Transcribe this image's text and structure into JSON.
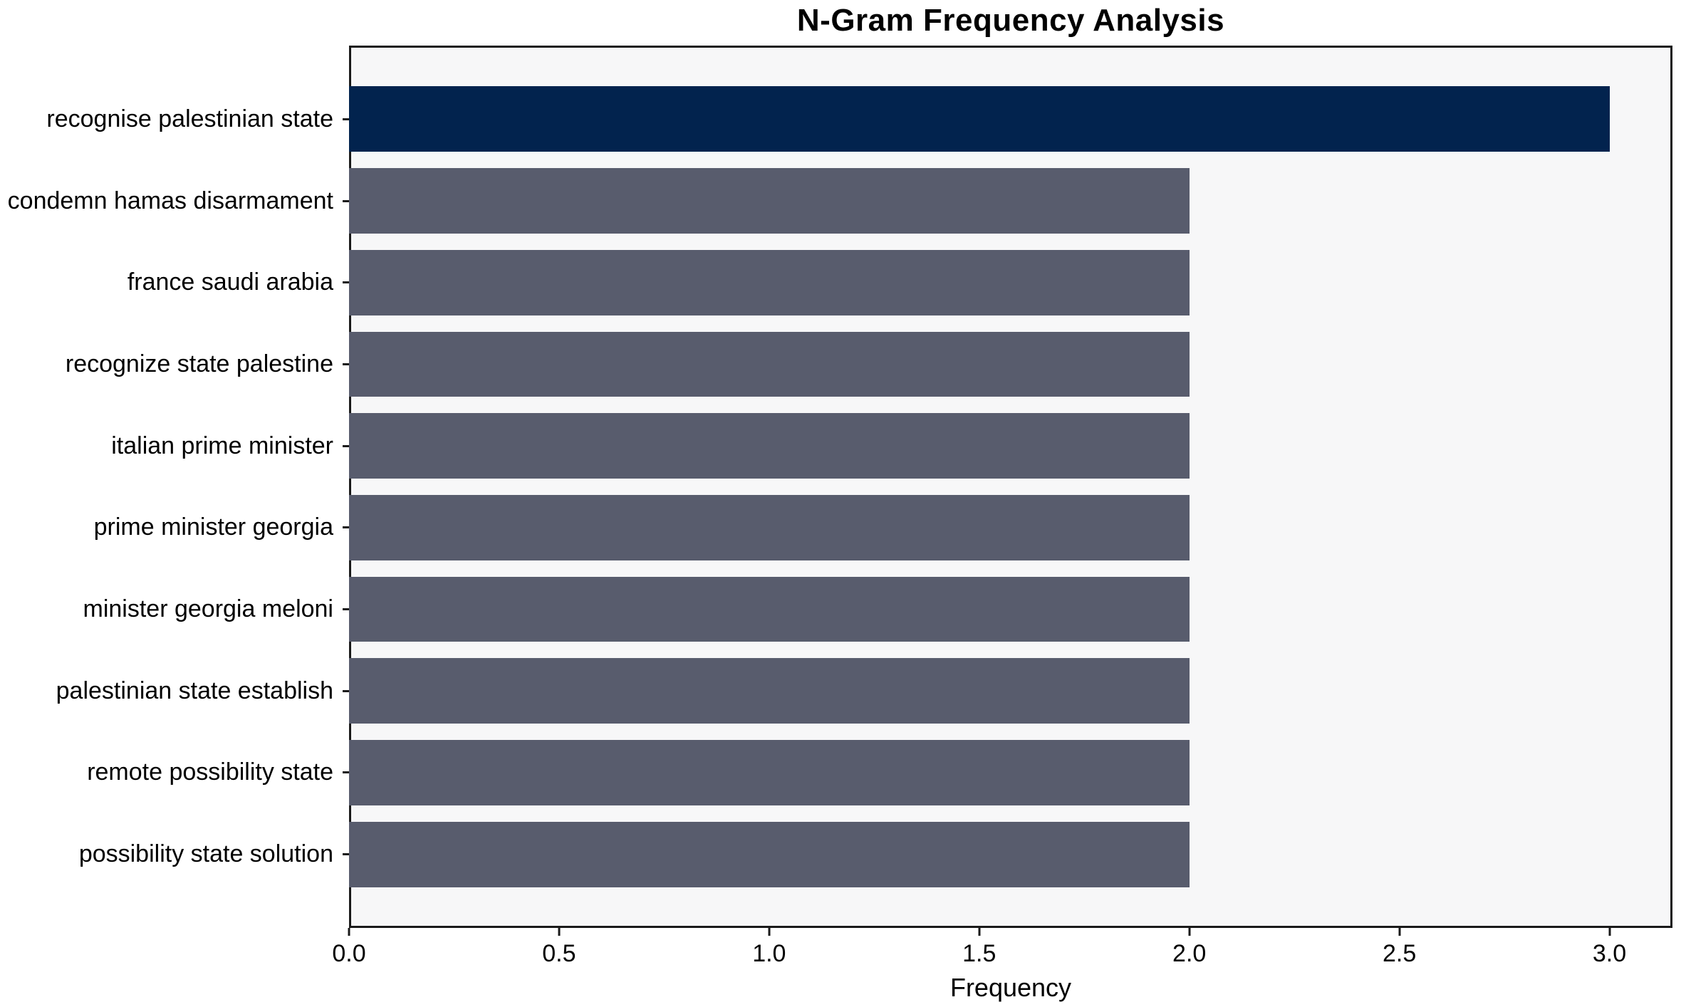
{
  "chart_data": {
    "type": "bar",
    "orientation": "horizontal",
    "title": "N-Gram Frequency Analysis",
    "xlabel": "Frequency",
    "ylabel": "",
    "categories": [
      "recognise palestinian state",
      "condemn hamas disarmament",
      "france saudi arabia",
      "recognize state palestine",
      "italian prime minister",
      "prime minister georgia",
      "minister georgia meloni",
      "palestinian state establish",
      "remote possibility state",
      "possibility state solution"
    ],
    "values": [
      3,
      2,
      2,
      2,
      2,
      2,
      2,
      2,
      2,
      2
    ],
    "bar_colors": [
      "#02234E",
      "#585C6D",
      "#585C6D",
      "#585C6D",
      "#585C6D",
      "#585C6D",
      "#585C6D",
      "#585C6D",
      "#585C6D",
      "#585C6D"
    ],
    "xlim": [
      0,
      3.15
    ],
    "xticks": [
      0.0,
      0.5,
      1.0,
      1.5,
      2.0,
      2.5,
      3.0
    ],
    "xtick_labels": [
      "0.0",
      "0.5",
      "1.0",
      "1.5",
      "2.0",
      "2.5",
      "3.0"
    ],
    "grid": false,
    "legend": null,
    "style": {
      "plot_background": "#F7F7F8",
      "figure_background": "#FFFFFF",
      "axis_color": "#1A1A1A",
      "text_color": "#000000",
      "highlight_color": "#02234E",
      "default_bar_color": "#585C6D"
    }
  }
}
